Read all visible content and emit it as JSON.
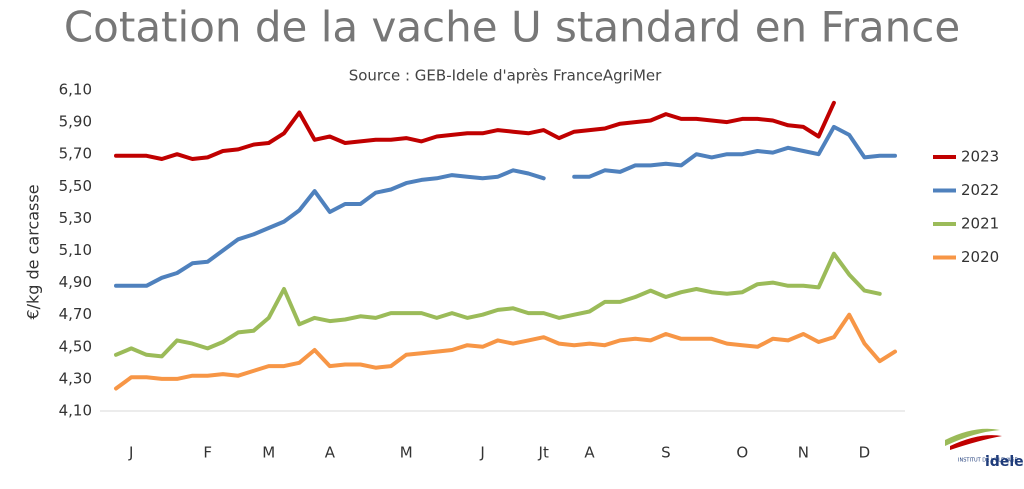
{
  "chart_data": {
    "type": "line",
    "title": "Cotation de la vache U standard en France",
    "subtitle": "Source : GEB-Idele d'après FranceAgriMer",
    "ylabel": "€/kg de carcasse",
    "logo": {
      "top": "INSTITUT DE L'ÉLEVAGE",
      "name": "idele"
    },
    "categories": [
      null,
      "J",
      null,
      null,
      null,
      null,
      "F",
      null,
      null,
      null,
      "M",
      null,
      null,
      null,
      "A",
      null,
      null,
      null,
      null,
      "M",
      null,
      null,
      null,
      null,
      "J",
      null,
      null,
      null,
      "Jt",
      null,
      null,
      "A",
      null,
      null,
      null,
      null,
      "S",
      null,
      null,
      null,
      null,
      "O",
      null,
      null,
      null,
      "N",
      null,
      null,
      null,
      "D",
      null,
      null
    ],
    "ylim": [
      4.1,
      6.1
    ],
    "yticks": [
      {
        "value": 4.1,
        "label": "4,10"
      },
      {
        "value": 4.3,
        "label": "4,30"
      },
      {
        "value": 4.5,
        "label": "4,50"
      },
      {
        "value": 4.7,
        "label": "4,70"
      },
      {
        "value": 4.9,
        "label": "4,90"
      },
      {
        "value": 5.1,
        "label": "5,10"
      },
      {
        "value": 5.3,
        "label": "5,30"
      },
      {
        "value": 5.5,
        "label": "5,50"
      },
      {
        "value": 5.7,
        "label": "5,70"
      },
      {
        "value": 5.9,
        "label": "5,90"
      },
      {
        "value": 6.1,
        "label": "6,10"
      }
    ],
    "grid": false,
    "legend": "right",
    "series": [
      {
        "name": "2023",
        "color": "#c00000",
        "values": [
          5.69,
          5.69,
          5.69,
          5.67,
          5.7,
          5.67,
          5.68,
          5.72,
          5.73,
          5.76,
          5.77,
          5.83,
          5.96,
          5.79,
          5.81,
          5.77,
          5.78,
          5.79,
          5.79,
          5.8,
          5.78,
          5.81,
          5.82,
          5.83,
          5.83,
          5.85,
          5.84,
          5.83,
          5.85,
          5.8,
          5.84,
          5.85,
          5.86,
          5.89,
          5.9,
          5.91,
          5.95,
          5.92,
          5.92,
          5.91,
          5.9,
          5.92,
          5.92,
          5.91,
          5.88,
          5.87,
          5.81,
          6.02,
          null,
          null,
          null,
          null
        ]
      },
      {
        "name": "2022",
        "color": "#4f81bd",
        "values": [
          4.88,
          4.88,
          4.88,
          4.93,
          4.96,
          5.02,
          5.03,
          5.1,
          5.17,
          5.2,
          5.24,
          5.28,
          5.35,
          5.47,
          5.34,
          5.39,
          5.39,
          5.46,
          5.48,
          5.52,
          5.54,
          5.55,
          5.57,
          5.56,
          5.55,
          5.56,
          5.6,
          5.58,
          5.55,
          null,
          5.56,
          5.56,
          5.6,
          5.59,
          5.63,
          5.63,
          5.64,
          5.63,
          5.7,
          5.68,
          5.7,
          5.7,
          5.72,
          5.71,
          5.74,
          5.72,
          5.7,
          5.87,
          5.82,
          5.68,
          5.69,
          5.69
        ]
      },
      {
        "name": "2021",
        "color": "#9bbb59",
        "values": [
          4.45,
          4.49,
          4.45,
          4.44,
          4.54,
          4.52,
          4.49,
          4.53,
          4.59,
          4.6,
          4.68,
          4.86,
          4.64,
          4.68,
          4.66,
          4.67,
          4.69,
          4.68,
          4.71,
          4.71,
          4.71,
          4.68,
          4.71,
          4.68,
          4.7,
          4.73,
          4.74,
          4.71,
          4.71,
          4.68,
          4.7,
          4.72,
          4.78,
          4.78,
          4.81,
          4.85,
          4.81,
          4.84,
          4.86,
          4.84,
          4.83,
          4.84,
          4.89,
          4.9,
          4.88,
          4.88,
          4.87,
          5.08,
          4.95,
          4.85,
          4.83,
          null
        ]
      },
      {
        "name": "2020",
        "color": "#f79646",
        "values": [
          4.24,
          4.31,
          4.31,
          4.3,
          4.3,
          4.32,
          4.32,
          4.33,
          4.32,
          4.35,
          4.38,
          4.38,
          4.4,
          4.48,
          4.38,
          4.39,
          4.39,
          4.37,
          4.38,
          4.45,
          4.46,
          4.47,
          4.48,
          4.51,
          4.5,
          4.54,
          4.52,
          4.54,
          4.56,
          4.52,
          4.51,
          4.52,
          4.51,
          4.54,
          4.55,
          4.54,
          4.58,
          4.55,
          4.55,
          4.55,
          4.52,
          4.51,
          4.5,
          4.55,
          4.54,
          4.58,
          4.53,
          4.56,
          4.7,
          4.52,
          4.41,
          4.47
        ]
      }
    ]
  }
}
